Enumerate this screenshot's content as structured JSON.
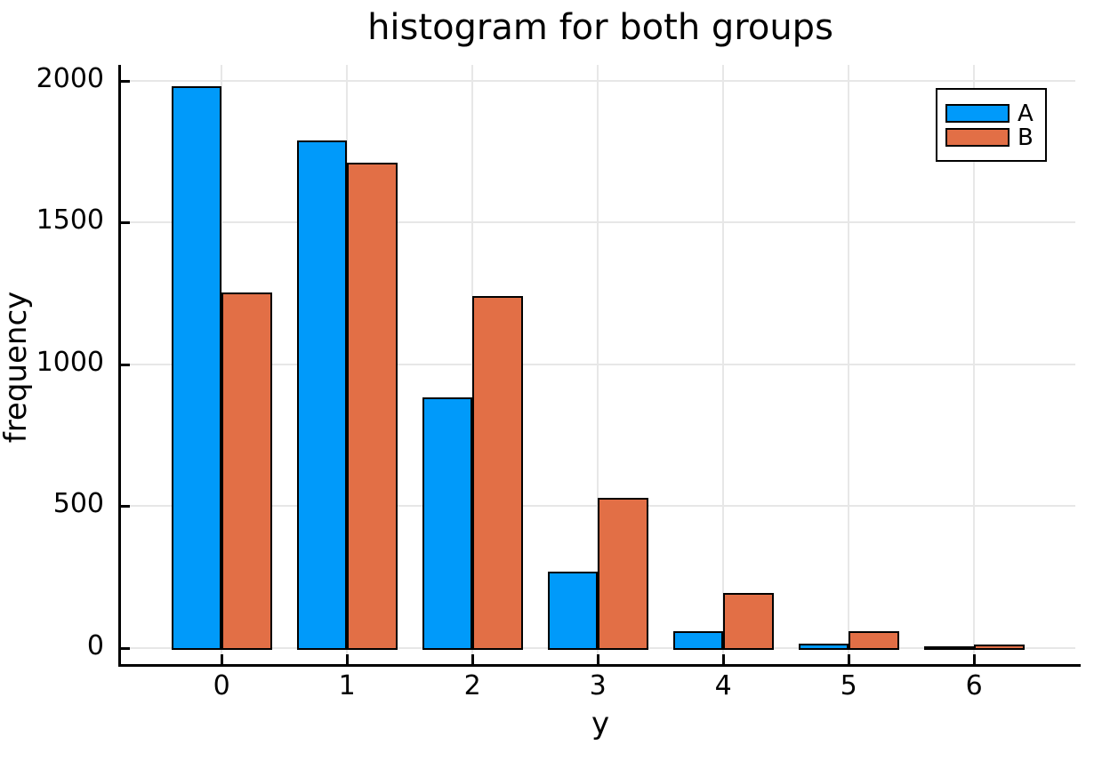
{
  "title": "histogram for both groups",
  "axes": {
    "xlabel": "y",
    "ylabel": "frequency"
  },
  "legend": {
    "position": "top-right",
    "entries": [
      {
        "label": "A",
        "color": "#009AFA"
      },
      {
        "label": "B",
        "color": "#E26F46"
      }
    ]
  },
  "colors": {
    "series_a": "#009AFA",
    "series_b": "#E26F46",
    "bar_edge": "#000000",
    "grid": "#E7E7E7",
    "axis": "#000000",
    "background": "#FFFFFF"
  },
  "chart_data": {
    "type": "bar",
    "subtype": "grouped-histogram-dodged",
    "title": "histogram for both groups",
    "xlabel": "y",
    "ylabel": "frequency",
    "categories": [
      0,
      1,
      2,
      3,
      4,
      5,
      6
    ],
    "series": [
      {
        "name": "A",
        "color": "#009AFA",
        "values": [
          1980,
          1790,
          885,
          270,
          60,
          15,
          5
        ]
      },
      {
        "name": "B",
        "color": "#E26F46",
        "values": [
          1255,
          1710,
          1240,
          530,
          195,
          58,
          13
        ]
      }
    ],
    "bar_width": 0.4,
    "xticks": [
      0,
      1,
      2,
      3,
      4,
      5,
      6
    ],
    "yticks": [
      0,
      500,
      1000,
      1500,
      2000
    ],
    "xlim": [
      -0.81,
      6.85
    ],
    "ylim": [
      -60,
      2056
    ],
    "grid": true,
    "legend_position": "top-right"
  }
}
